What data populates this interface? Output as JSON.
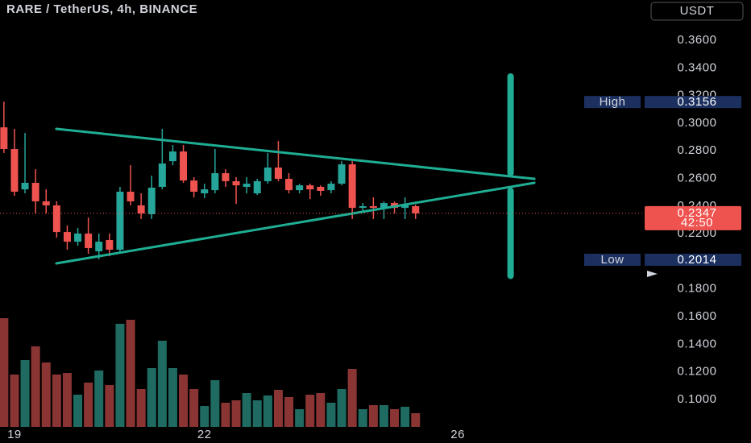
{
  "chart_data": {
    "type": "candlestick",
    "title": "RARE / TetherUS, 4h, BINANCE",
    "currency_button": "USDT",
    "x": [
      -1,
      0,
      1,
      2,
      3,
      4,
      5,
      6,
      7,
      8,
      9,
      10,
      11,
      12,
      13,
      14,
      15,
      16,
      17,
      18,
      19,
      20,
      21,
      22,
      23,
      24,
      25,
      26,
      27,
      28,
      29,
      30,
      31,
      32,
      33,
      34,
      35,
      36,
      37,
      38
    ],
    "open": [
      0.297,
      0.2813,
      0.2521,
      0.2568,
      0.2434,
      0.2405,
      0.2212,
      0.2142,
      0.2201,
      0.2072,
      0.2154,
      0.2084,
      0.2504,
      0.2405,
      0.2341,
      0.2539,
      0.2725,
      0.2795,
      0.2585,
      0.2492,
      0.2515,
      0.2638,
      0.258,
      0.2539,
      0.2492,
      0.258,
      0.2679,
      0.2597,
      0.2515,
      0.255,
      0.2539,
      0.2515,
      0.2562,
      0.2702,
      0.2387,
      0.2399,
      0.2387,
      0.2422,
      0.2387,
      0.2399
    ],
    "high": [
      0.3156,
      0.2959,
      0.2929,
      0.2667,
      0.2521,
      0.2434,
      0.2259,
      0.2241,
      0.2317,
      0.2201,
      0.2201,
      0.2539,
      0.2696,
      0.2492,
      0.262,
      0.2959,
      0.2842,
      0.2842,
      0.2609,
      0.2562,
      0.2813,
      0.2667,
      0.2609,
      0.2609,
      0.2597,
      0.2784,
      0.2871,
      0.2638,
      0.2562,
      0.2562,
      0.255,
      0.258,
      0.2725,
      0.2725,
      0.2422,
      0.2463,
      0.2434,
      0.2434,
      0.2463,
      0.241
    ],
    "low": [
      0.2784,
      0.2475,
      0.2492,
      0.2346,
      0.2346,
      0.2171,
      0.2084,
      0.2113,
      0.2055,
      0.2014,
      0.2037,
      0.2061,
      0.2405,
      0.2306,
      0.2306,
      0.2521,
      0.2696,
      0.2568,
      0.2463,
      0.2457,
      0.2492,
      0.2539,
      0.2416,
      0.2492,
      0.248,
      0.2562,
      0.258,
      0.2492,
      0.2492,
      0.2451,
      0.2475,
      0.2492,
      0.255,
      0.2306,
      0.2364,
      0.2306,
      0.2306,
      0.2346,
      0.2306,
      0.2306
    ],
    "close": [
      0.2813,
      0.2504,
      0.2568,
      0.2434,
      0.2405,
      0.2212,
      0.2142,
      0.2201,
      0.2096,
      0.2142,
      0.2084,
      0.2504,
      0.2434,
      0.2346,
      0.2533,
      0.2708,
      0.2795,
      0.2585,
      0.2504,
      0.2521,
      0.2638,
      0.258,
      0.255,
      0.2562,
      0.258,
      0.2679,
      0.2597,
      0.2515,
      0.255,
      0.2521,
      0.251,
      0.2562,
      0.2702,
      0.2387,
      0.2399,
      0.2387,
      0.2422,
      0.2387,
      0.2405,
      0.2347
    ],
    "volume": [
      135,
      65,
      83,
      100,
      80,
      65,
      67,
      40,
      55,
      70,
      52,
      128,
      133,
      47,
      73,
      107,
      73,
      65,
      47,
      26,
      58,
      30,
      33,
      42,
      33,
      39,
      46,
      37,
      22,
      40,
      42,
      30,
      47,
      72,
      22,
      27,
      27,
      22,
      25,
      17
    ],
    "volume_lim": [
      0,
      530
    ],
    "up_color": "#26a69a",
    "down_color": "#ef5350",
    "volume_up_color": "#1f6b62",
    "volume_down_color": "#8a3534",
    "line_color": "#1fae94",
    "xlim": [
      -1.37,
      59.7
    ],
    "xticks": [
      {
        "value": 0,
        "label": "19"
      },
      {
        "value": 18,
        "label": "22"
      },
      {
        "value": 42,
        "label": "26"
      }
    ],
    "ylim": [
      0.0801,
      0.3892
    ],
    "yticks": [
      {
        "value": 0.36,
        "label": "0.3600"
      },
      {
        "value": 0.34,
        "label": "0.3400"
      },
      {
        "value": 0.32,
        "label": "0.3200"
      },
      {
        "value": 0.3,
        "label": "0.3000"
      },
      {
        "value": 0.28,
        "label": "0.2800"
      },
      {
        "value": 0.26,
        "label": "0.2600"
      },
      {
        "value": 0.24,
        "label": "0.2400"
      },
      {
        "value": 0.22,
        "label": "0.2200"
      },
      {
        "value": 0.18,
        "label": "0.1800"
      },
      {
        "value": 0.16,
        "label": "0.1600"
      },
      {
        "value": 0.14,
        "label": "0.1400"
      },
      {
        "value": 0.12,
        "label": "0.1200"
      },
      {
        "value": 0.1,
        "label": "0.1000"
      }
    ],
    "trend_lines": [
      {
        "x": [
          3.97,
          49.25
        ],
        "y": [
          0.2959,
          0.2597
        ]
      },
      {
        "x": [
          3.97,
          49.25
        ],
        "y": [
          0.1985,
          0.2568
        ]
      }
    ],
    "projection": {
      "x": 47,
      "upper": [
        0.2638,
        0.3338
      ],
      "lower": [
        0.1895,
        0.251
      ]
    },
    "high_label": "High",
    "high_value": 0.3156,
    "low_label": "Low",
    "low_value": 0.2014,
    "current_price": 0.2347,
    "countdown": "42:50"
  }
}
